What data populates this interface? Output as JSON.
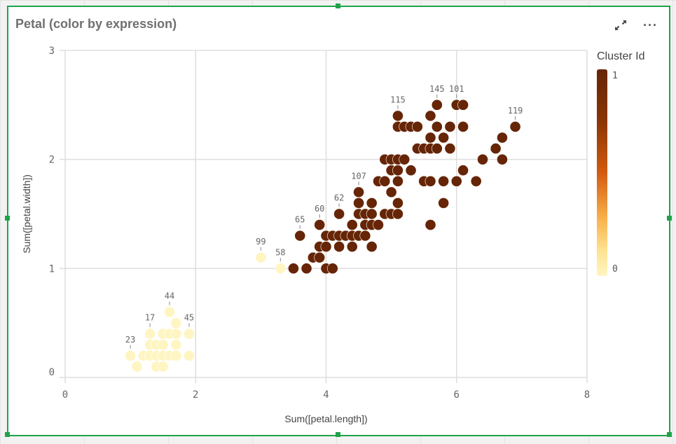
{
  "title": "Petal (color by expression)",
  "header_icons": [
    "expand-icon",
    "more-options-icon"
  ],
  "legend": {
    "title": "Cluster Id",
    "max_label": "1",
    "min_label": "0",
    "color_max": "#662506",
    "color_min": "#fff5c2"
  },
  "chart_data": {
    "type": "scatter",
    "xlabel": "Sum([petal.length])",
    "ylabel": "Sum([petal.width])",
    "xlim": [
      0,
      8
    ],
    "ylim": [
      0,
      3
    ],
    "xticks": [
      "0",
      "2",
      "4",
      "6",
      "8"
    ],
    "yticks": [
      "0",
      "1",
      "2",
      "3"
    ],
    "grid": true,
    "legend_position": "right",
    "color_by": "Cluster Id",
    "colors": {
      "0": "#fff5c2",
      "1": "#662506"
    },
    "points": [
      {
        "x": 1.0,
        "y": 0.2,
        "c": 0,
        "label": "23"
      },
      {
        "x": 1.2,
        "y": 0.2,
        "c": 0
      },
      {
        "x": 1.3,
        "y": 0.2,
        "c": 0
      },
      {
        "x": 1.4,
        "y": 0.2,
        "c": 0
      },
      {
        "x": 1.5,
        "y": 0.2,
        "c": 0
      },
      {
        "x": 1.6,
        "y": 0.2,
        "c": 0
      },
      {
        "x": 1.7,
        "y": 0.2,
        "c": 0
      },
      {
        "x": 1.9,
        "y": 0.2,
        "c": 0
      },
      {
        "x": 1.1,
        "y": 0.1,
        "c": 0
      },
      {
        "x": 1.4,
        "y": 0.1,
        "c": 0
      },
      {
        "x": 1.5,
        "y": 0.1,
        "c": 0
      },
      {
        "x": 1.3,
        "y": 0.3,
        "c": 0
      },
      {
        "x": 1.4,
        "y": 0.3,
        "c": 0
      },
      {
        "x": 1.5,
        "y": 0.3,
        "c": 0
      },
      {
        "x": 1.7,
        "y": 0.3,
        "c": 0
      },
      {
        "x": 1.3,
        "y": 0.4,
        "c": 0,
        "label": "17"
      },
      {
        "x": 1.5,
        "y": 0.4,
        "c": 0
      },
      {
        "x": 1.6,
        "y": 0.4,
        "c": 0
      },
      {
        "x": 1.7,
        "y": 0.4,
        "c": 0
      },
      {
        "x": 1.9,
        "y": 0.4,
        "c": 0,
        "label": "45"
      },
      {
        "x": 1.7,
        "y": 0.5,
        "c": 0
      },
      {
        "x": 1.6,
        "y": 0.6,
        "c": 0,
        "label": "44"
      },
      {
        "x": 3.0,
        "y": 1.1,
        "c": 0,
        "label": "99"
      },
      {
        "x": 3.3,
        "y": 1.0,
        "c": 0,
        "label": "58"
      },
      {
        "x": 3.5,
        "y": 1.0,
        "c": 1
      },
      {
        "x": 3.7,
        "y": 1.0,
        "c": 1
      },
      {
        "x": 4.0,
        "y": 1.0,
        "c": 1
      },
      {
        "x": 4.1,
        "y": 1.0,
        "c": 1
      },
      {
        "x": 3.8,
        "y": 1.1,
        "c": 1
      },
      {
        "x": 3.9,
        "y": 1.1,
        "c": 1
      },
      {
        "x": 3.9,
        "y": 1.2,
        "c": 1
      },
      {
        "x": 4.0,
        "y": 1.2,
        "c": 1
      },
      {
        "x": 4.2,
        "y": 1.2,
        "c": 1
      },
      {
        "x": 4.4,
        "y": 1.2,
        "c": 1
      },
      {
        "x": 4.7,
        "y": 1.2,
        "c": 1
      },
      {
        "x": 3.6,
        "y": 1.3,
        "c": 1,
        "label": "65"
      },
      {
        "x": 4.0,
        "y": 1.3,
        "c": 1
      },
      {
        "x": 4.1,
        "y": 1.3,
        "c": 1
      },
      {
        "x": 4.2,
        "y": 1.3,
        "c": 1
      },
      {
        "x": 4.3,
        "y": 1.3,
        "c": 1
      },
      {
        "x": 4.4,
        "y": 1.3,
        "c": 1
      },
      {
        "x": 4.5,
        "y": 1.3,
        "c": 1
      },
      {
        "x": 4.6,
        "y": 1.3,
        "c": 1
      },
      {
        "x": 3.9,
        "y": 1.4,
        "c": 1,
        "label": "60"
      },
      {
        "x": 4.4,
        "y": 1.4,
        "c": 1
      },
      {
        "x": 4.6,
        "y": 1.4,
        "c": 1
      },
      {
        "x": 4.7,
        "y": 1.4,
        "c": 1
      },
      {
        "x": 4.8,
        "y": 1.4,
        "c": 1
      },
      {
        "x": 5.6,
        "y": 1.4,
        "c": 1
      },
      {
        "x": 4.2,
        "y": 1.5,
        "c": 1,
        "label": "62"
      },
      {
        "x": 4.5,
        "y": 1.5,
        "c": 1
      },
      {
        "x": 4.6,
        "y": 1.5,
        "c": 1
      },
      {
        "x": 4.7,
        "y": 1.5,
        "c": 1
      },
      {
        "x": 4.9,
        "y": 1.5,
        "c": 1
      },
      {
        "x": 5.0,
        "y": 1.5,
        "c": 1
      },
      {
        "x": 5.1,
        "y": 1.5,
        "c": 1
      },
      {
        "x": 4.5,
        "y": 1.6,
        "c": 1
      },
      {
        "x": 4.7,
        "y": 1.6,
        "c": 1
      },
      {
        "x": 5.1,
        "y": 1.6,
        "c": 1
      },
      {
        "x": 5.8,
        "y": 1.6,
        "c": 1
      },
      {
        "x": 4.5,
        "y": 1.7,
        "c": 1,
        "label": "107"
      },
      {
        "x": 5.0,
        "y": 1.7,
        "c": 1
      },
      {
        "x": 4.8,
        "y": 1.8,
        "c": 1
      },
      {
        "x": 4.9,
        "y": 1.8,
        "c": 1
      },
      {
        "x": 5.1,
        "y": 1.8,
        "c": 1
      },
      {
        "x": 5.5,
        "y": 1.8,
        "c": 1
      },
      {
        "x": 5.6,
        "y": 1.8,
        "c": 1
      },
      {
        "x": 5.8,
        "y": 1.8,
        "c": 1
      },
      {
        "x": 6.0,
        "y": 1.8,
        "c": 1
      },
      {
        "x": 6.3,
        "y": 1.8,
        "c": 1
      },
      {
        "x": 5.0,
        "y": 1.9,
        "c": 1
      },
      {
        "x": 5.1,
        "y": 1.9,
        "c": 1
      },
      {
        "x": 5.3,
        "y": 1.9,
        "c": 1
      },
      {
        "x": 6.1,
        "y": 1.9,
        "c": 1
      },
      {
        "x": 4.9,
        "y": 2.0,
        "c": 1
      },
      {
        "x": 5.0,
        "y": 2.0,
        "c": 1
      },
      {
        "x": 5.1,
        "y": 2.0,
        "c": 1
      },
      {
        "x": 5.2,
        "y": 2.0,
        "c": 1
      },
      {
        "x": 6.4,
        "y": 2.0,
        "c": 1
      },
      {
        "x": 6.7,
        "y": 2.0,
        "c": 1
      },
      {
        "x": 5.4,
        "y": 2.1,
        "c": 1
      },
      {
        "x": 5.5,
        "y": 2.1,
        "c": 1
      },
      {
        "x": 5.6,
        "y": 2.1,
        "c": 1
      },
      {
        "x": 5.7,
        "y": 2.1,
        "c": 1
      },
      {
        "x": 5.9,
        "y": 2.1,
        "c": 1
      },
      {
        "x": 6.6,
        "y": 2.1,
        "c": 1
      },
      {
        "x": 5.6,
        "y": 2.2,
        "c": 1
      },
      {
        "x": 5.8,
        "y": 2.2,
        "c": 1
      },
      {
        "x": 6.7,
        "y": 2.2,
        "c": 1
      },
      {
        "x": 5.1,
        "y": 2.3,
        "c": 1
      },
      {
        "x": 5.2,
        "y": 2.3,
        "c": 1
      },
      {
        "x": 5.3,
        "y": 2.3,
        "c": 1
      },
      {
        "x": 5.4,
        "y": 2.3,
        "c": 1
      },
      {
        "x": 5.7,
        "y": 2.3,
        "c": 1
      },
      {
        "x": 5.9,
        "y": 2.3,
        "c": 1
      },
      {
        "x": 6.1,
        "y": 2.3,
        "c": 1
      },
      {
        "x": 6.9,
        "y": 2.3,
        "c": 1,
        "label": "119"
      },
      {
        "x": 5.1,
        "y": 2.4,
        "c": 1,
        "label": "115"
      },
      {
        "x": 5.6,
        "y": 2.4,
        "c": 1
      },
      {
        "x": 5.7,
        "y": 2.5,
        "c": 1,
        "label": "145"
      },
      {
        "x": 6.0,
        "y": 2.5,
        "c": 1,
        "label": "101"
      },
      {
        "x": 6.1,
        "y": 2.5,
        "c": 1
      }
    ]
  }
}
